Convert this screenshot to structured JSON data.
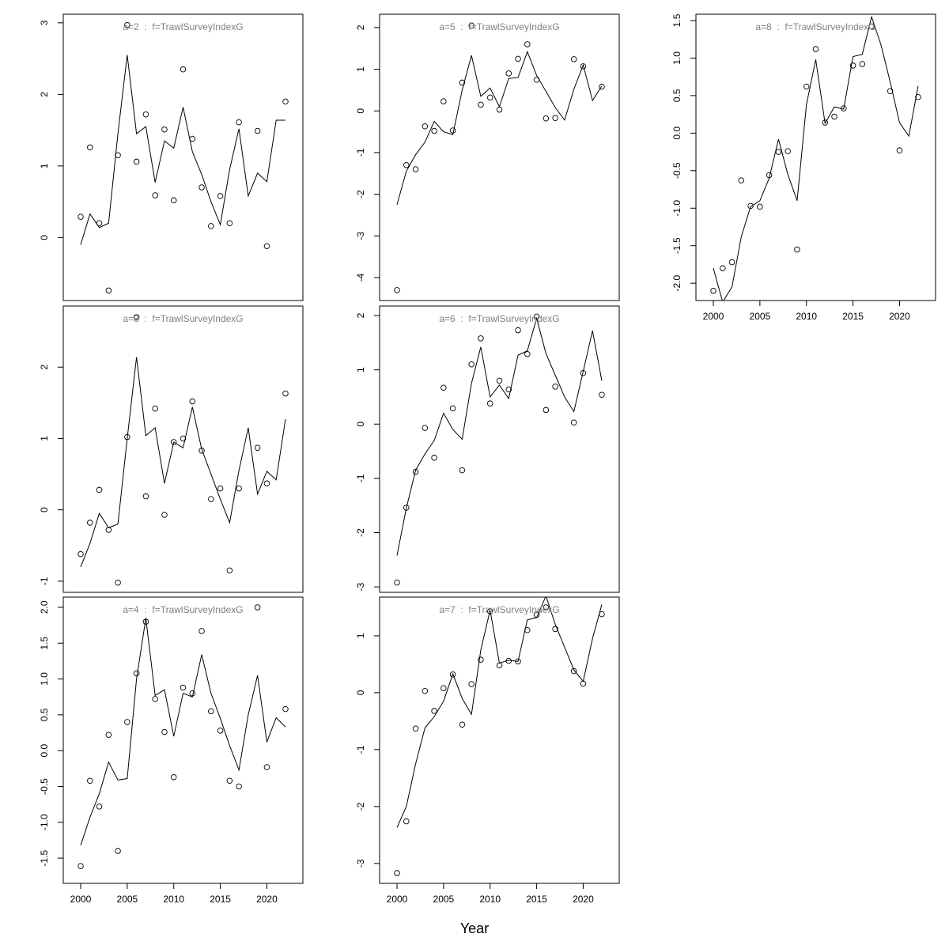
{
  "xlabel": "Year",
  "chart_data": [
    {
      "type": "line",
      "title": "a=2  :  f=TrawlSurveyIndexG",
      "x": [
        2000,
        2001,
        2002,
        2003,
        2004,
        2005,
        2006,
        2007,
        2008,
        2009,
        2010,
        2011,
        2012,
        2013,
        2014,
        2015,
        2016,
        2017,
        2018,
        2019,
        2020,
        2021,
        2022
      ],
      "xlim": [
        1998.13,
        2023.87
      ],
      "ylim": [
        -0.88,
        3.12
      ],
      "yticks": [
        0,
        1,
        2,
        3
      ],
      "series": [
        {
          "style": "points",
          "color": "#000000",
          "values": [
            0.29,
            1.26,
            0.2,
            -0.74,
            1.15,
            2.97,
            1.06,
            1.72,
            0.59,
            1.51,
            0.52,
            2.35,
            1.38,
            0.7,
            0.16,
            0.58,
            0.2,
            1.61,
            null,
            1.49,
            -0.12,
            null,
            1.9
          ]
        },
        {
          "style": "line",
          "color": "#000000",
          "values": [
            -0.1,
            0.33,
            0.14,
            0.2,
            1.45,
            2.55,
            1.45,
            1.55,
            0.77,
            1.35,
            1.25,
            1.82,
            1.2,
            0.88,
            0.5,
            0.18,
            0.95,
            1.52,
            0.58,
            0.9,
            0.78,
            1.64,
            1.64
          ]
        }
      ]
    },
    {
      "type": "line",
      "title": "a=3  :  f=TrawlSurveyIndexG",
      "x": [
        2000,
        2001,
        2002,
        2003,
        2004,
        2005,
        2006,
        2007,
        2008,
        2009,
        2010,
        2011,
        2012,
        2013,
        2014,
        2015,
        2016,
        2017,
        2018,
        2019,
        2020,
        2021,
        2022
      ],
      "xlim": [
        1998.13,
        2023.87
      ],
      "ylim": [
        -1.156,
        2.856
      ],
      "yticks": [
        -1,
        0,
        1,
        2
      ],
      "series": [
        {
          "style": "points",
          "color": "#000000",
          "values": [
            -0.62,
            -0.18,
            0.28,
            -0.28,
            -1.02,
            1.02,
            2.7,
            0.19,
            1.42,
            -0.07,
            0.95,
            1.0,
            1.52,
            0.83,
            0.15,
            0.3,
            -0.85,
            0.3,
            null,
            0.87,
            0.37,
            null,
            1.63
          ]
        },
        {
          "style": "line",
          "color": "#000000",
          "values": [
            -0.8,
            -0.47,
            -0.05,
            -0.25,
            -0.2,
            1.0,
            2.14,
            1.04,
            1.15,
            0.37,
            0.95,
            0.87,
            1.44,
            0.85,
            0.5,
            0.15,
            -0.18,
            0.55,
            1.15,
            0.22,
            0.54,
            0.42,
            1.27
          ]
        }
      ]
    },
    {
      "type": "line",
      "title": "a=4  :  f=TrawlSurveyIndexG",
      "x": [
        2000,
        2001,
        2002,
        2003,
        2004,
        2005,
        2006,
        2007,
        2008,
        2009,
        2010,
        2011,
        2012,
        2013,
        2014,
        2015,
        2016,
        2017,
        2018,
        2019,
        2020,
        2021,
        2022
      ],
      "xlim": [
        1998.13,
        2023.87
      ],
      "ylim": [
        -1.852,
        2.143
      ],
      "yticks": [
        -1.5,
        {
          "value": -1,
          "label": "-1.0"
        },
        -0.5,
        {
          "value": 0,
          "label": "0.0"
        },
        0.5,
        {
          "value": 1,
          "label": "1.0"
        },
        1.5,
        {
          "value": 2,
          "label": "2.0"
        }
      ],
      "xticks": [
        2000,
        2005,
        2010,
        2015,
        2020
      ],
      "series": [
        {
          "style": "points",
          "color": "#000000",
          "values": [
            -1.61,
            -0.42,
            -0.78,
            0.22,
            -1.4,
            0.4,
            1.08,
            1.8,
            0.72,
            0.26,
            -0.37,
            0.88,
            0.8,
            1.67,
            0.55,
            0.28,
            -0.42,
            -0.5,
            null,
            2.0,
            -0.23,
            null,
            0.58
          ]
        },
        {
          "style": "line",
          "color": "#000000",
          "values": [
            -1.32,
            -0.93,
            -0.6,
            -0.16,
            -0.41,
            -0.39,
            1.0,
            1.85,
            0.77,
            0.85,
            0.2,
            0.8,
            0.75,
            1.34,
            0.8,
            0.45,
            0.07,
            -0.27,
            0.5,
            1.05,
            0.12,
            0.46,
            0.33
          ]
        }
      ]
    },
    {
      "type": "line",
      "title": "a=5  :  f=TrawlSurveyIndexG",
      "x": [
        2000,
        2001,
        2002,
        2003,
        2004,
        2005,
        2006,
        2007,
        2008,
        2009,
        2010,
        2011,
        2012,
        2013,
        2014,
        2015,
        2016,
        2017,
        2018,
        2019,
        2020,
        2021,
        2022
      ],
      "xlim": [
        1998.13,
        2023.87
      ],
      "ylim": [
        -4.55,
        2.32
      ],
      "yticks": [
        -4,
        -3,
        -2,
        -1,
        0,
        1,
        2
      ],
      "series": [
        {
          "style": "points",
          "color": "#000000",
          "values": [
            -4.3,
            -1.3,
            -1.4,
            -0.37,
            -0.48,
            0.23,
            -0.47,
            0.68,
            2.05,
            0.15,
            0.32,
            0.03,
            0.9,
            1.25,
            1.6,
            0.75,
            -0.18,
            -0.17,
            null,
            1.24,
            1.07,
            null,
            0.58
          ]
        },
        {
          "style": "line",
          "color": "#000000",
          "values": [
            -2.25,
            -1.45,
            -1.05,
            -0.75,
            -0.25,
            -0.5,
            -0.57,
            0.5,
            1.33,
            0.35,
            0.55,
            0.1,
            0.78,
            0.8,
            1.42,
            0.85,
            0.47,
            0.08,
            -0.22,
            0.52,
            1.1,
            0.25,
            0.6
          ]
        }
      ]
    },
    {
      "type": "line",
      "title": "a=6  :  f=TrawlSurveyIndexG",
      "x": [
        2000,
        2001,
        2002,
        2003,
        2004,
        2005,
        2006,
        2007,
        2008,
        2009,
        2010,
        2011,
        2012,
        2013,
        2014,
        2015,
        2016,
        2017,
        2018,
        2019,
        2020,
        2021,
        2022
      ],
      "xlim": [
        1998.13,
        2023.87
      ],
      "ylim": [
        -3.1,
        2.175
      ],
      "yticks": [
        -3,
        -2,
        -1,
        0,
        1,
        2
      ],
      "series": [
        {
          "style": "points",
          "color": "#000000",
          "values": [
            -2.92,
            -1.54,
            -0.88,
            -0.07,
            -0.62,
            0.67,
            0.29,
            -0.85,
            1.1,
            1.58,
            0.38,
            0.8,
            0.64,
            1.73,
            1.29,
            1.98,
            0.26,
            0.69,
            null,
            0.03,
            0.94,
            null,
            0.54
          ]
        },
        {
          "style": "line",
          "color": "#000000",
          "values": [
            -2.42,
            -1.55,
            -0.85,
            -0.55,
            -0.3,
            0.2,
            -0.1,
            -0.28,
            0.75,
            1.42,
            0.5,
            0.72,
            0.47,
            1.27,
            1.35,
            1.95,
            1.3,
            0.9,
            0.5,
            0.23,
            0.97,
            1.72,
            0.8
          ]
        }
      ]
    },
    {
      "type": "line",
      "title": "a=7  :  f=TrawlSurveyIndexG",
      "x": [
        2000,
        2001,
        2002,
        2003,
        2004,
        2005,
        2006,
        2007,
        2008,
        2009,
        2010,
        2011,
        2012,
        2013,
        2014,
        2015,
        2016,
        2017,
        2018,
        2019,
        2020,
        2021,
        2022
      ],
      "xlim": [
        1998.13,
        2023.87
      ],
      "ylim": [
        -3.35,
        1.68
      ],
      "yticks": [
        -3,
        -2,
        -1,
        0,
        1
      ],
      "xticks": [
        2000,
        2005,
        2010,
        2015,
        2020
      ],
      "series": [
        {
          "style": "points",
          "color": "#000000",
          "values": [
            -3.17,
            -2.26,
            -0.63,
            0.03,
            -0.32,
            0.08,
            0.32,
            -0.56,
            0.15,
            0.58,
            1.43,
            0.48,
            0.56,
            0.55,
            1.1,
            1.37,
            1.5,
            1.12,
            null,
            0.38,
            0.16,
            null,
            1.38
          ]
        },
        {
          "style": "line",
          "color": "#000000",
          "values": [
            -2.37,
            -2.0,
            -1.25,
            -0.62,
            -0.42,
            -0.15,
            0.33,
            -0.1,
            -0.38,
            0.75,
            1.45,
            0.52,
            0.57,
            0.55,
            1.28,
            1.32,
            1.7,
            1.2,
            0.8,
            0.4,
            0.2,
            0.95,
            1.55
          ]
        }
      ]
    },
    {
      "type": "line",
      "title": "a=8  :  f=TrawlSurveyIndexG",
      "x": [
        2000,
        2001,
        2002,
        2003,
        2004,
        2005,
        2006,
        2007,
        2008,
        2009,
        2010,
        2011,
        2012,
        2013,
        2014,
        2015,
        2016,
        2017,
        2018,
        2019,
        2020,
        2021,
        2022
      ],
      "xlim": [
        1998.13,
        2023.87
      ],
      "ylim": [
        -2.23,
        1.584
      ],
      "yticks": [
        {
          "value": -2,
          "label": "-2.0"
        },
        -1.5,
        {
          "value": -1,
          "label": "-1.0"
        },
        -0.5,
        {
          "value": 0,
          "label": "0.0"
        },
        0.5,
        {
          "value": 1,
          "label": "1.0"
        },
        1.5
      ],
      "xticks": [
        2000,
        2005,
        2010,
        2015,
        2020
      ],
      "series": [
        {
          "style": "points",
          "color": "#000000",
          "values": [
            -2.1,
            -1.8,
            -1.72,
            -0.63,
            -0.97,
            -0.98,
            -0.56,
            -0.25,
            -0.24,
            -1.55,
            0.62,
            1.12,
            0.14,
            0.22,
            0.33,
            0.9,
            0.92,
            1.42,
            null,
            0.56,
            -0.23,
            null,
            0.48
          ]
        },
        {
          "style": "line",
          "color": "#000000",
          "values": [
            -1.8,
            -2.25,
            -2.05,
            -1.38,
            -0.98,
            -0.9,
            -0.6,
            -0.08,
            -0.55,
            -0.9,
            0.38,
            0.98,
            0.13,
            0.35,
            0.32,
            1.02,
            1.05,
            1.55,
            1.18,
            0.68,
            0.14,
            -0.04,
            0.63
          ]
        }
      ]
    }
  ]
}
